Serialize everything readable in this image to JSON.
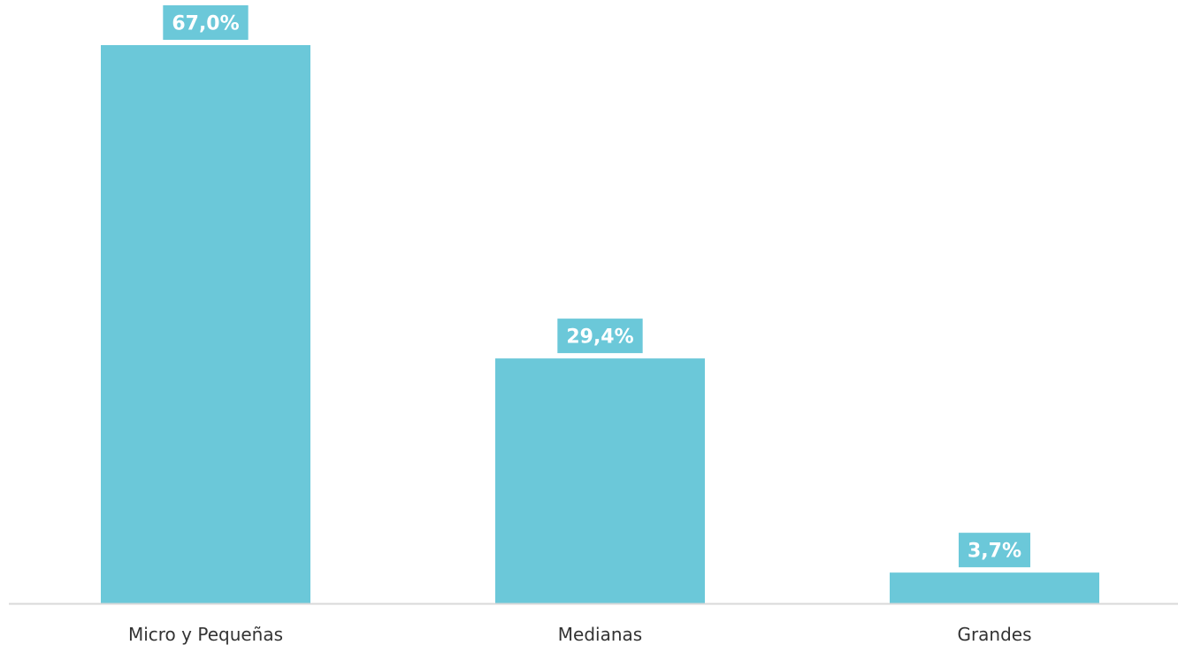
{
  "chart_data": {
    "type": "bar",
    "categories": [
      "Micro y Pequeñas",
      "Medianas",
      "Grandes"
    ],
    "values": [
      67.0,
      29.4,
      3.7
    ],
    "data_labels": [
      "67,0%",
      "29,4%",
      "3,7%"
    ],
    "title": "",
    "xlabel": "",
    "ylabel": "",
    "ylim": [
      0,
      67.0
    ],
    "grid": false,
    "legend": "none",
    "colors": {
      "bar": "#6bc8d9",
      "label_bg": "#6bc8d9",
      "label_text": "#ffffff",
      "axis": "#d9d9d9",
      "tick_text": "#333333"
    }
  }
}
